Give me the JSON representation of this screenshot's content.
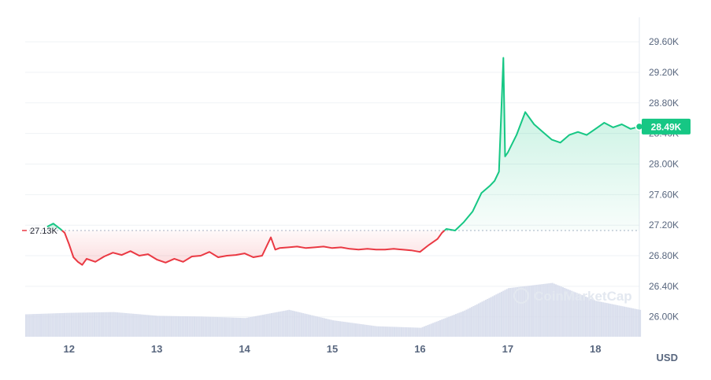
{
  "chart_data": {
    "type": "line",
    "title": "",
    "xlabel": "",
    "ylabel": "",
    "unit": "USD",
    "watermark": "CoinMarketCap",
    "x_ticks": [
      "12",
      "13",
      "14",
      "15",
      "16",
      "17",
      "18"
    ],
    "y_ticks": [
      "26.00K",
      "26.40K",
      "26.80K",
      "27.20K",
      "27.60K",
      "28.00K",
      "28.40K",
      "28.80K",
      "29.20K",
      "29.60K"
    ],
    "ylim": [
      25740,
      29920
    ],
    "xlim": [
      11.5,
      18.5
    ],
    "reference_label": "27.13K",
    "reference_value": 27130,
    "current_label": "28.49K",
    "current_value": 28490,
    "colors": {
      "up": "#16c784",
      "down": "#ea3943",
      "volume": "#d4d9ea",
      "grid": "#eff2f5"
    },
    "series": [
      {
        "values": [
          [
            11.75,
            27180
          ],
          [
            11.82,
            27220
          ],
          [
            11.9,
            27150
          ],
          [
            11.95,
            27100
          ],
          [
            12.0,
            26950
          ],
          [
            12.05,
            26780
          ],
          [
            12.1,
            26720
          ],
          [
            12.15,
            26680
          ],
          [
            12.2,
            26760
          ],
          [
            12.3,
            26720
          ],
          [
            12.4,
            26790
          ],
          [
            12.5,
            26840
          ],
          [
            12.6,
            26810
          ],
          [
            12.7,
            26860
          ],
          [
            12.8,
            26800
          ],
          [
            12.9,
            26820
          ],
          [
            13.0,
            26750
          ],
          [
            13.1,
            26710
          ],
          [
            13.2,
            26760
          ],
          [
            13.3,
            26720
          ],
          [
            13.4,
            26790
          ],
          [
            13.5,
            26800
          ],
          [
            13.6,
            26850
          ],
          [
            13.7,
            26780
          ],
          [
            13.8,
            26800
          ],
          [
            13.9,
            26810
          ],
          [
            14.0,
            26830
          ],
          [
            14.1,
            26780
          ],
          [
            14.2,
            26800
          ],
          [
            14.25,
            26920
          ],
          [
            14.3,
            27040
          ],
          [
            14.35,
            26880
          ],
          [
            14.4,
            26900
          ],
          [
            14.5,
            26910
          ],
          [
            14.6,
            26920
          ],
          [
            14.7,
            26900
          ],
          [
            14.8,
            26910
          ],
          [
            14.9,
            26920
          ],
          [
            15.0,
            26900
          ],
          [
            15.1,
            26910
          ],
          [
            15.2,
            26890
          ],
          [
            15.3,
            26880
          ],
          [
            15.4,
            26890
          ],
          [
            15.5,
            26880
          ],
          [
            15.6,
            26880
          ],
          [
            15.7,
            26890
          ],
          [
            15.8,
            26880
          ],
          [
            15.9,
            26870
          ],
          [
            16.0,
            26850
          ],
          [
            16.1,
            26940
          ],
          [
            16.2,
            27020
          ],
          [
            16.25,
            27100
          ],
          [
            16.3,
            27150
          ],
          [
            16.4,
            27130
          ],
          [
            16.5,
            27240
          ],
          [
            16.6,
            27380
          ],
          [
            16.7,
            27620
          ],
          [
            16.8,
            27720
          ],
          [
            16.85,
            27780
          ],
          [
            16.9,
            27900
          ],
          [
            16.95,
            29390
          ],
          [
            16.97,
            28100
          ],
          [
            17.0,
            28150
          ],
          [
            17.1,
            28380
          ],
          [
            17.2,
            28680
          ],
          [
            17.3,
            28520
          ],
          [
            17.4,
            28420
          ],
          [
            17.5,
            28320
          ],
          [
            17.6,
            28280
          ],
          [
            17.7,
            28380
          ],
          [
            17.8,
            28420
          ],
          [
            17.9,
            28380
          ],
          [
            18.0,
            28460
          ],
          [
            18.1,
            28540
          ],
          [
            18.2,
            28480
          ],
          [
            18.3,
            28520
          ],
          [
            18.4,
            28460
          ],
          [
            18.5,
            28490
          ]
        ]
      }
    ],
    "volume": [
      [
        11.5,
        0.3
      ],
      [
        12.0,
        0.32
      ],
      [
        12.5,
        0.33
      ],
      [
        13.0,
        0.28
      ],
      [
        13.5,
        0.27
      ],
      [
        14.0,
        0.25
      ],
      [
        14.5,
        0.36
      ],
      [
        15.0,
        0.22
      ],
      [
        15.5,
        0.14
      ],
      [
        16.0,
        0.12
      ],
      [
        16.5,
        0.35
      ],
      [
        17.0,
        0.65
      ],
      [
        17.5,
        0.72
      ],
      [
        18.0,
        0.48
      ],
      [
        18.5,
        0.36
      ]
    ]
  }
}
